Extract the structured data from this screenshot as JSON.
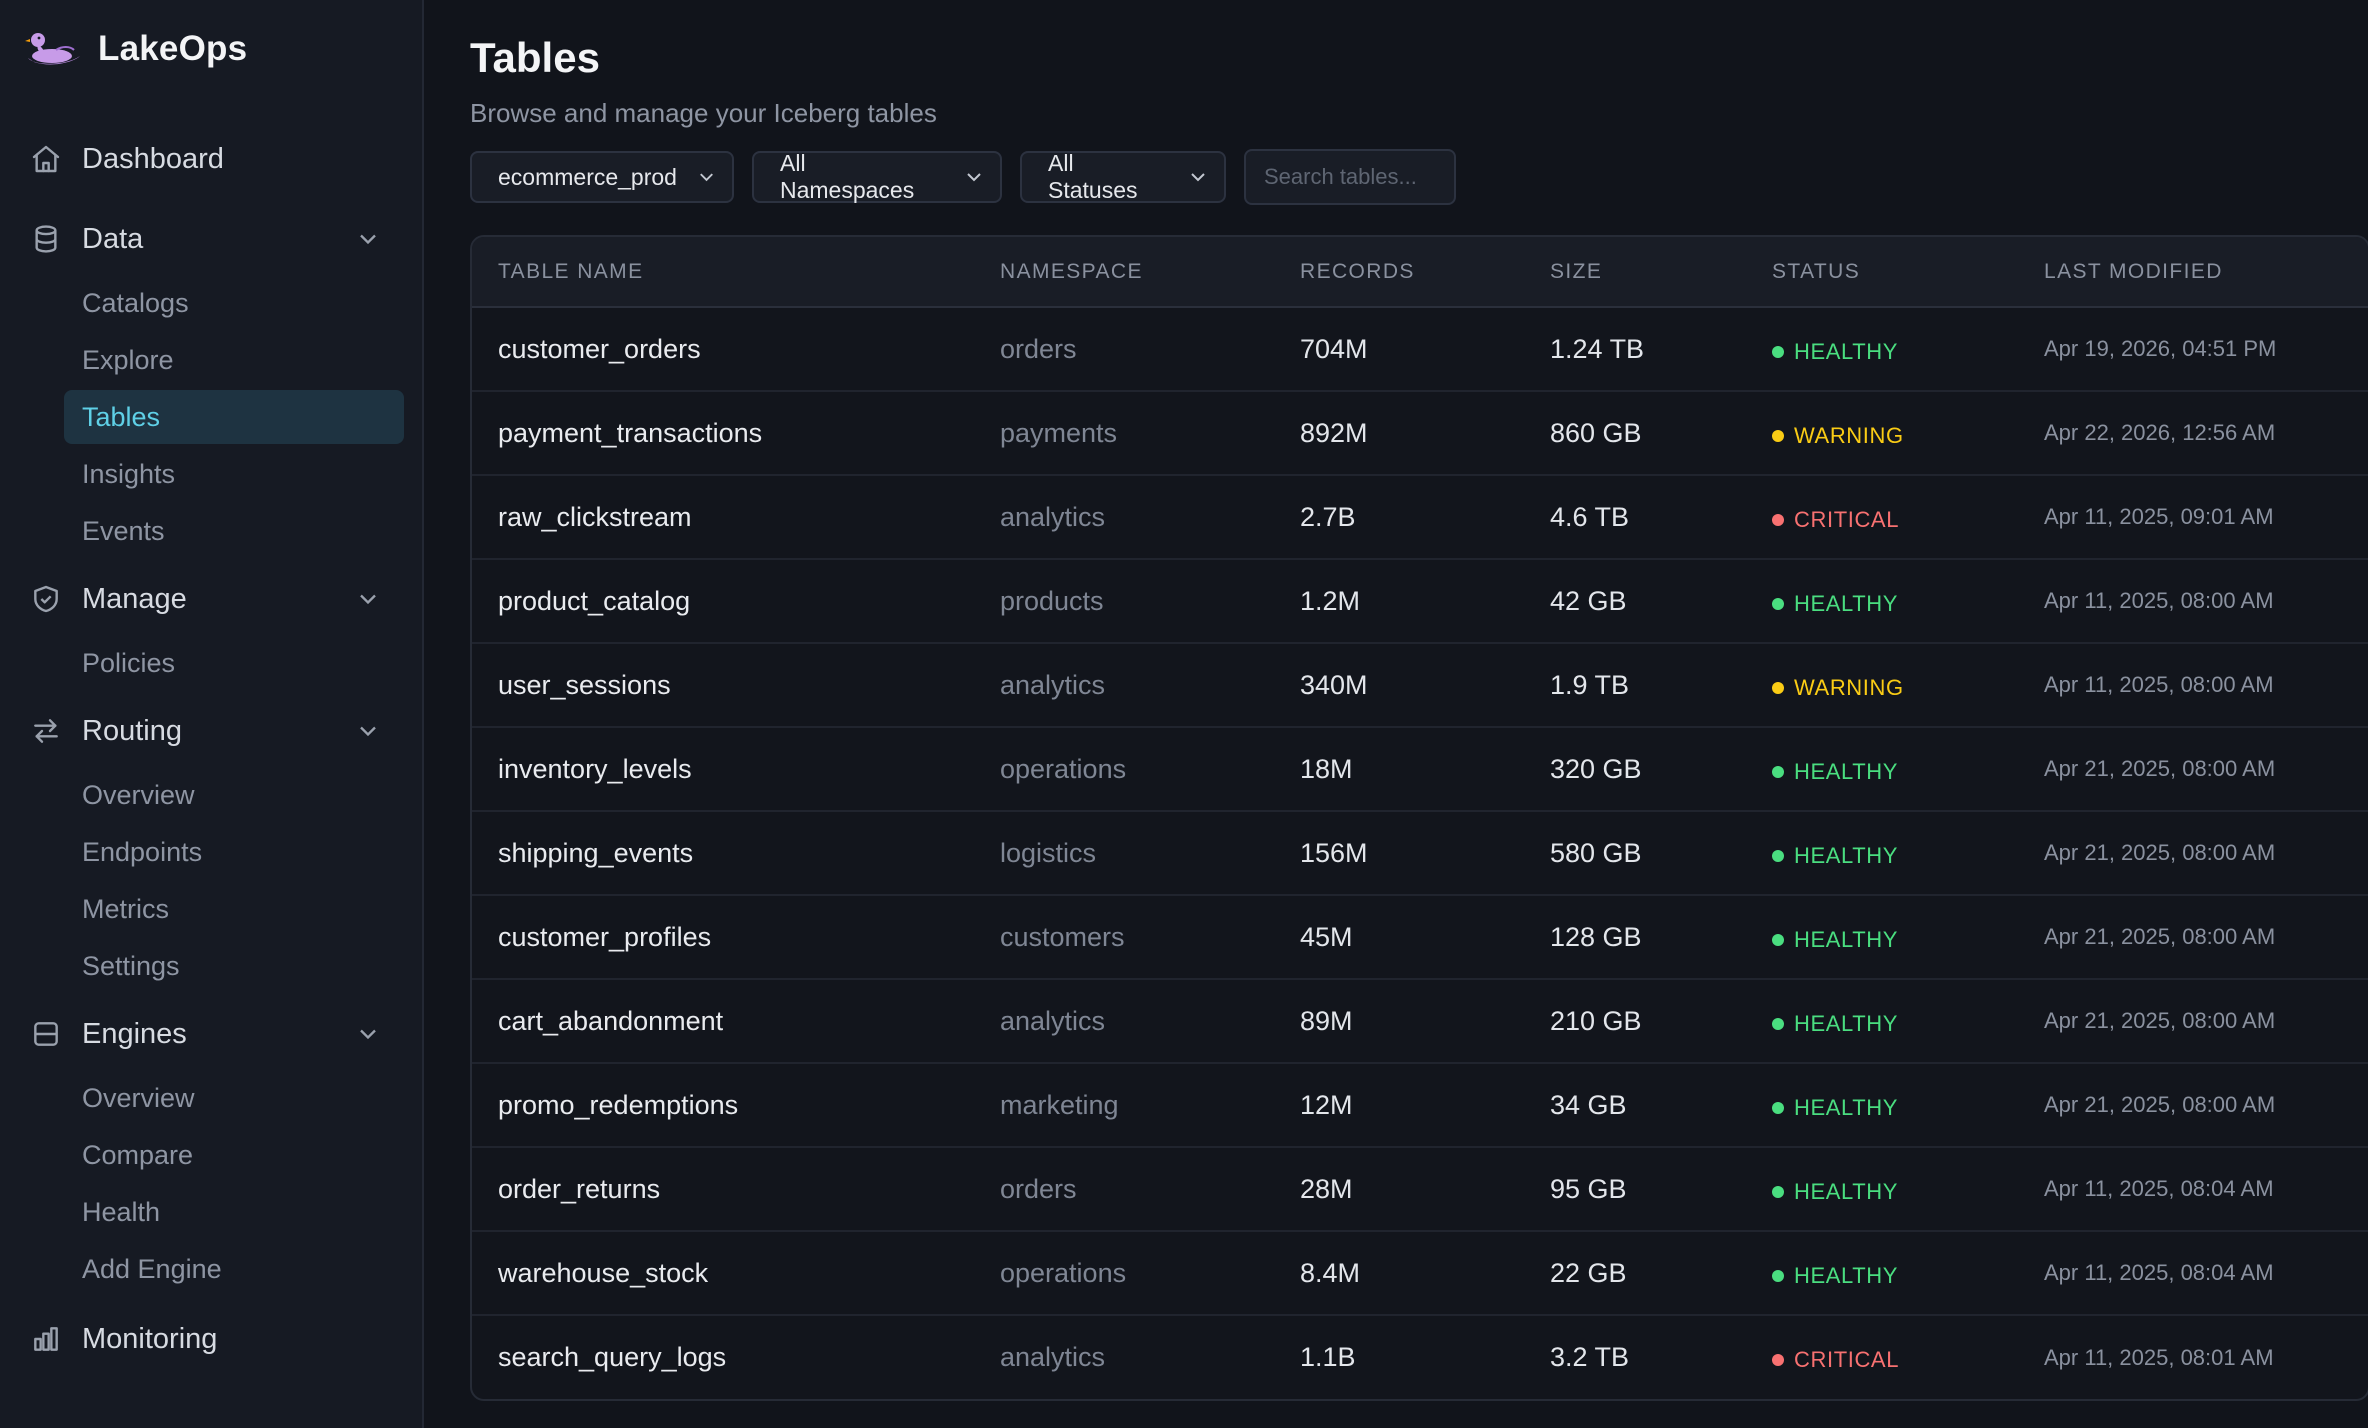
{
  "brand": {
    "name": "LakeOps",
    "logo_icon": "lake-duck-logo"
  },
  "sidebar": {
    "dashboard": {
      "label": "Dashboard",
      "icon": "home-icon"
    },
    "sections": [
      {
        "label": "Data",
        "icon": "database-icon",
        "items": [
          "Catalogs",
          "Explore",
          "Tables",
          "Insights",
          "Events"
        ]
      },
      {
        "label": "Manage",
        "icon": "shield-icon",
        "items": [
          "Policies"
        ]
      },
      {
        "label": "Routing",
        "icon": "arrows-icon",
        "items": [
          "Overview",
          "Endpoints",
          "Metrics",
          "Settings"
        ]
      },
      {
        "label": "Engines",
        "icon": "server-icon",
        "items": [
          "Overview",
          "Compare",
          "Health",
          "Add Engine"
        ]
      }
    ],
    "active_item": "Tables",
    "monitoring": {
      "label": "Monitoring",
      "icon": "bar-chart-icon"
    }
  },
  "page": {
    "title": "Tables",
    "subtitle": "Browse and manage your Iceberg tables"
  },
  "filters": {
    "catalog": "ecommerce_prod",
    "namespace": "All Namespaces",
    "status": "All Statuses",
    "search_placeholder": "Search tables..."
  },
  "colors": {
    "HEALTHY": "#4ade80",
    "WARNING": "#facc15",
    "CRITICAL": "#f87171",
    "accent": "#5fd0e6"
  },
  "table": {
    "columns": [
      "TABLE NAME",
      "NAMESPACE",
      "RECORDS",
      "SIZE",
      "STATUS",
      "LAST MODIFIED"
    ],
    "rows": [
      {
        "name": "customer_orders",
        "namespace": "orders",
        "records": "704M",
        "size": "1.24 TB",
        "status": "HEALTHY",
        "modified": "Apr 19, 2026, 04:51 PM"
      },
      {
        "name": "payment_transactions",
        "namespace": "payments",
        "records": "892M",
        "size": "860 GB",
        "status": "WARNING",
        "modified": "Apr 22, 2026, 12:56 AM"
      },
      {
        "name": "raw_clickstream",
        "namespace": "analytics",
        "records": "2.7B",
        "size": "4.6 TB",
        "status": "CRITICAL",
        "modified": "Apr 11, 2025, 09:01 AM"
      },
      {
        "name": "product_catalog",
        "namespace": "products",
        "records": "1.2M",
        "size": "42 GB",
        "status": "HEALTHY",
        "modified": "Apr 11, 2025, 08:00 AM"
      },
      {
        "name": "user_sessions",
        "namespace": "analytics",
        "records": "340M",
        "size": "1.9 TB",
        "status": "WARNING",
        "modified": "Apr 11, 2025, 08:00 AM"
      },
      {
        "name": "inventory_levels",
        "namespace": "operations",
        "records": "18M",
        "size": "320 GB",
        "status": "HEALTHY",
        "modified": "Apr 21, 2025, 08:00 AM"
      },
      {
        "name": "shipping_events",
        "namespace": "logistics",
        "records": "156M",
        "size": "580 GB",
        "status": "HEALTHY",
        "modified": "Apr 21, 2025, 08:00 AM"
      },
      {
        "name": "customer_profiles",
        "namespace": "customers",
        "records": "45M",
        "size": "128 GB",
        "status": "HEALTHY",
        "modified": "Apr 21, 2025, 08:00 AM"
      },
      {
        "name": "cart_abandonment",
        "namespace": "analytics",
        "records": "89M",
        "size": "210 GB",
        "status": "HEALTHY",
        "modified": "Apr 21, 2025, 08:00 AM"
      },
      {
        "name": "promo_redemptions",
        "namespace": "marketing",
        "records": "12M",
        "size": "34 GB",
        "status": "HEALTHY",
        "modified": "Apr 21, 2025, 08:00 AM"
      },
      {
        "name": "order_returns",
        "namespace": "orders",
        "records": "28M",
        "size": "95 GB",
        "status": "HEALTHY",
        "modified": "Apr 11, 2025, 08:04 AM"
      },
      {
        "name": "warehouse_stock",
        "namespace": "operations",
        "records": "8.4M",
        "size": "22 GB",
        "status": "HEALTHY",
        "modified": "Apr 11, 2025, 08:04 AM"
      },
      {
        "name": "search_query_logs",
        "namespace": "analytics",
        "records": "1.1B",
        "size": "3.2 TB",
        "status": "CRITICAL",
        "modified": "Apr 11, 2025, 08:01 AM"
      }
    ]
  }
}
